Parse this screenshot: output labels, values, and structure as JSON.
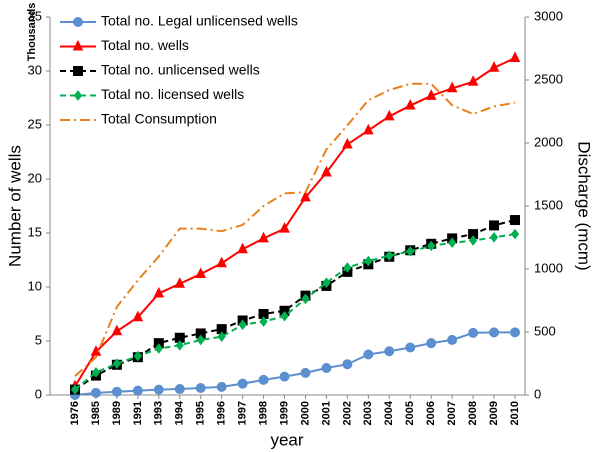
{
  "chart_data": {
    "type": "line",
    "y_unit_label": "Thousands",
    "xlabel": "year",
    "ylabel": "Number of wells",
    "y2label": "Discharge (mcm)",
    "categories": [
      "1976",
      "1985",
      "1989",
      "1991",
      "1993",
      "1994",
      "1995",
      "1996",
      "1997",
      "1998",
      "1999",
      "2000",
      "2001",
      "2002",
      "2003",
      "2004",
      "2005",
      "2006",
      "2007",
      "2008",
      "2009",
      "2010"
    ],
    "ylim": [
      0,
      35
    ],
    "yticks": [
      0,
      5,
      10,
      15,
      20,
      25,
      30,
      35
    ],
    "y2lim": [
      0,
      3000
    ],
    "y2ticks": [
      0,
      500,
      1000,
      1500,
      2000,
      2500,
      3000
    ],
    "legend": "upper left",
    "series": [
      {
        "name": "Total no. Legal unlicensed wells",
        "color": "#5b8fcf",
        "marker": "circle",
        "style": "solid",
        "values": [
          0,
          0.2,
          0.3,
          0.4,
          0.5,
          0.55,
          0.65,
          0.75,
          1.05,
          1.4,
          1.7,
          2.05,
          2.5,
          2.85,
          3.75,
          4.05,
          4.4,
          4.8,
          5.1,
          5.75,
          5.8,
          5.8
        ]
      },
      {
        "name": "Total no. wells",
        "color": "#ff0000",
        "marker": "triangle",
        "style": "solid",
        "values": [
          0.8,
          4.0,
          5.9,
          7.2,
          9.4,
          10.3,
          11.2,
          12.2,
          13.5,
          14.5,
          15.4,
          18.3,
          20.6,
          23.2,
          24.5,
          25.8,
          26.8,
          27.7,
          28.4,
          29.0,
          30.3,
          31.2
        ]
      },
      {
        "name": "Total no. unlicensed wells",
        "color": "#000000",
        "marker": "square",
        "style": "dashed",
        "values": [
          0.5,
          1.8,
          2.8,
          3.5,
          4.8,
          5.3,
          5.7,
          6.1,
          6.9,
          7.5,
          7.8,
          9.2,
          10.1,
          11.4,
          12.1,
          12.8,
          13.4,
          14.0,
          14.5,
          14.9,
          15.7,
          16.2
        ]
      },
      {
        "name": "Total no. licensed wells",
        "color": "#00b050",
        "marker": "diamond",
        "style": "dashed",
        "values": [
          0.5,
          2.1,
          2.9,
          3.6,
          4.3,
          4.6,
          5.1,
          5.4,
          6.5,
          6.8,
          7.3,
          8.9,
          10.4,
          11.8,
          12.4,
          12.9,
          13.3,
          13.8,
          14.1,
          14.3,
          14.6,
          14.9
        ]
      },
      {
        "name": "Total Consumption",
        "color": "#e8811c",
        "marker": "none",
        "style": "dash-dot",
        "axis": "y2",
        "values": [
          150,
          300,
          700,
          910,
          1100,
          1320,
          1320,
          1300,
          1350,
          1500,
          1600,
          1610,
          1950,
          2140,
          2340,
          2420,
          2470,
          2470,
          2300,
          2230,
          2290,
          2320
        ]
      }
    ]
  }
}
